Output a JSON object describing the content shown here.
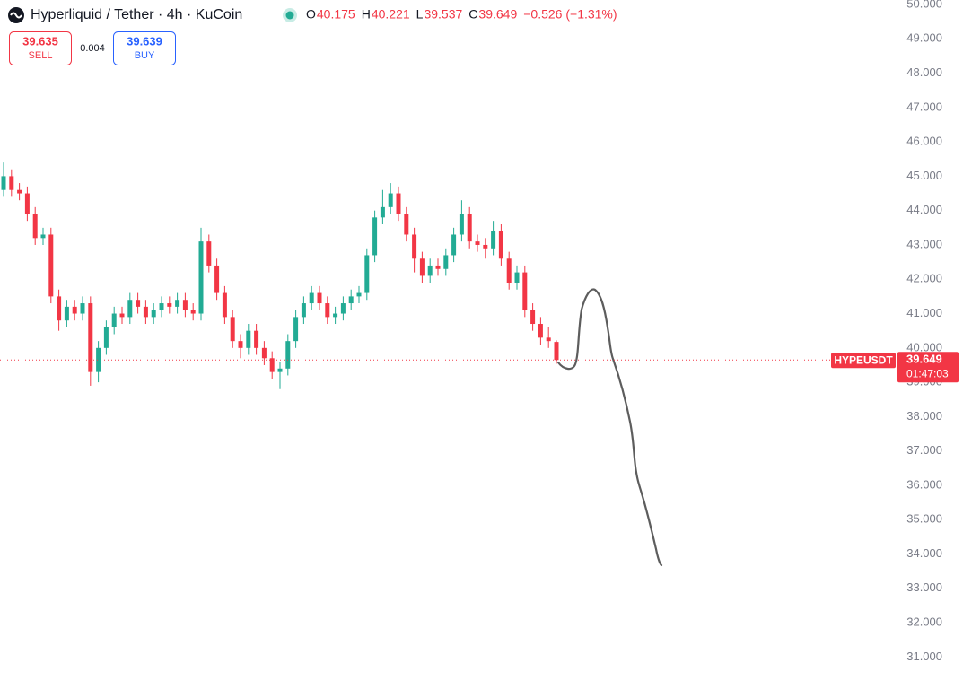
{
  "chart_data": {
    "type": "candlestick",
    "title": "Hyperliquid / Tether · 4h · KuCoin",
    "legend_values": [
      {
        "label": "O",
        "value": "40.175"
      },
      {
        "label": "H",
        "value": "40.221"
      },
      {
        "label": "L",
        "value": "39.537"
      },
      {
        "label": "C",
        "value": "39.649"
      }
    ],
    "change": "−0.526 (−1.31%)",
    "sell": {
      "price": "39.635",
      "label": "SELL"
    },
    "spread": "0.004",
    "buy": {
      "price": "39.639",
      "label": "BUY"
    },
    "symbol": "HYPEUSDT",
    "last_price": 39.649,
    "countdown": "01:47:03",
    "up_color": "#22ab94",
    "down_color": "#f23645",
    "grid": false,
    "ylim": [
      30.2,
      50.13
    ],
    "yticks": [
      {
        "value": 50,
        "label": "50.000"
      },
      {
        "value": 49,
        "label": "49.000"
      },
      {
        "value": 48,
        "label": "48.000"
      },
      {
        "value": 47,
        "label": "47.000"
      },
      {
        "value": 46,
        "label": "46.000"
      },
      {
        "value": 45,
        "label": "45.000"
      },
      {
        "value": 44,
        "label": "44.000"
      },
      {
        "value": 43,
        "label": "43.000"
      },
      {
        "value": 42,
        "label": "42.000"
      },
      {
        "value": 41,
        "label": "41.000"
      },
      {
        "value": 40,
        "label": "40.000"
      },
      {
        "value": 39,
        "label": "39.000"
      },
      {
        "value": 38,
        "label": "38.000"
      },
      {
        "value": 37,
        "label": "37.000"
      },
      {
        "value": 36,
        "label": "36.000"
      },
      {
        "value": 35,
        "label": "35.000"
      },
      {
        "value": 34,
        "label": "34.000"
      },
      {
        "value": 33,
        "label": "33.000"
      },
      {
        "value": 32,
        "label": "32.000"
      },
      {
        "value": 31,
        "label": "31.000"
      }
    ],
    "open": [
      44.6,
      45.0,
      44.6,
      44.5,
      43.9,
      43.2,
      43.3,
      41.5,
      40.8,
      41.2,
      41.0,
      41.3,
      39.3,
      40.0,
      40.6,
      41.0,
      40.9,
      41.4,
      41.2,
      40.9,
      41.1,
      41.3,
      41.2,
      41.4,
      41.1,
      41.0,
      43.1,
      42.4,
      41.6,
      40.9,
      40.2,
      40.0,
      40.5,
      40.0,
      39.7,
      39.3,
      39.4,
      40.2,
      40.9,
      41.3,
      41.6,
      41.3,
      40.9,
      41.0,
      41.3,
      41.5,
      41.6,
      42.7,
      43.8,
      44.1,
      44.5,
      43.9,
      43.3,
      42.6,
      42.1,
      42.4,
      42.3,
      42.7,
      43.3,
      43.9,
      43.1,
      43.0,
      42.9,
      43.4,
      42.6,
      41.9,
      42.2,
      41.1,
      40.7,
      40.3,
      40.175
    ],
    "high": [
      45.4,
      45.2,
      44.8,
      44.7,
      44.1,
      43.5,
      43.5,
      41.7,
      41.4,
      41.4,
      41.5,
      41.5,
      40.2,
      40.8,
      41.2,
      41.2,
      41.6,
      41.6,
      41.4,
      41.3,
      41.5,
      41.5,
      41.6,
      41.6,
      41.3,
      43.5,
      43.3,
      42.6,
      41.8,
      41.1,
      40.4,
      40.7,
      40.7,
      40.2,
      39.9,
      39.6,
      40.4,
      41.1,
      41.5,
      41.8,
      41.8,
      41.5,
      41.2,
      41.5,
      41.7,
      41.8,
      42.9,
      44.0,
      44.6,
      44.8,
      44.7,
      44.1,
      43.5,
      42.8,
      42.6,
      42.6,
      42.9,
      43.5,
      44.3,
      44.1,
      43.3,
      43.2,
      43.7,
      43.6,
      42.8,
      42.4,
      42.4,
      41.3,
      40.9,
      40.6,
      40.221
    ],
    "low": [
      44.4,
      44.4,
      44.3,
      43.7,
      43.0,
      43.0,
      41.3,
      40.5,
      40.6,
      40.8,
      40.8,
      38.9,
      39.0,
      39.8,
      40.4,
      40.7,
      40.7,
      41.0,
      40.7,
      40.7,
      40.9,
      41.0,
      41.0,
      40.9,
      40.8,
      40.8,
      42.2,
      41.4,
      40.7,
      40.0,
      39.7,
      39.8,
      39.8,
      39.5,
      39.1,
      38.8,
      39.2,
      40.0,
      40.7,
      41.1,
      41.1,
      40.7,
      40.7,
      40.8,
      41.1,
      41.3,
      41.4,
      42.5,
      43.6,
      43.9,
      43.7,
      43.1,
      42.2,
      41.9,
      41.9,
      42.1,
      42.1,
      42.5,
      43.1,
      42.9,
      42.8,
      42.6,
      42.7,
      42.4,
      41.7,
      41.7,
      40.9,
      40.5,
      40.1,
      40.0,
      39.537
    ],
    "close": [
      45.0,
      44.6,
      44.5,
      43.9,
      43.2,
      43.3,
      41.5,
      40.8,
      41.2,
      41.0,
      41.3,
      39.3,
      40.0,
      40.6,
      41.0,
      40.9,
      41.4,
      41.2,
      40.9,
      41.1,
      41.3,
      41.2,
      41.4,
      41.1,
      41.0,
      43.1,
      42.4,
      41.6,
      40.9,
      40.2,
      40.0,
      40.5,
      40.0,
      39.7,
      39.3,
      39.4,
      40.2,
      40.9,
      41.3,
      41.6,
      41.3,
      40.9,
      41.0,
      41.3,
      41.5,
      41.6,
      42.7,
      43.8,
      44.1,
      44.5,
      43.9,
      43.3,
      42.6,
      42.1,
      42.4,
      42.3,
      42.7,
      43.3,
      43.9,
      43.1,
      43.0,
      42.9,
      43.4,
      42.6,
      41.9,
      42.2,
      41.1,
      40.7,
      40.3,
      40.2,
      39.649
    ]
  }
}
